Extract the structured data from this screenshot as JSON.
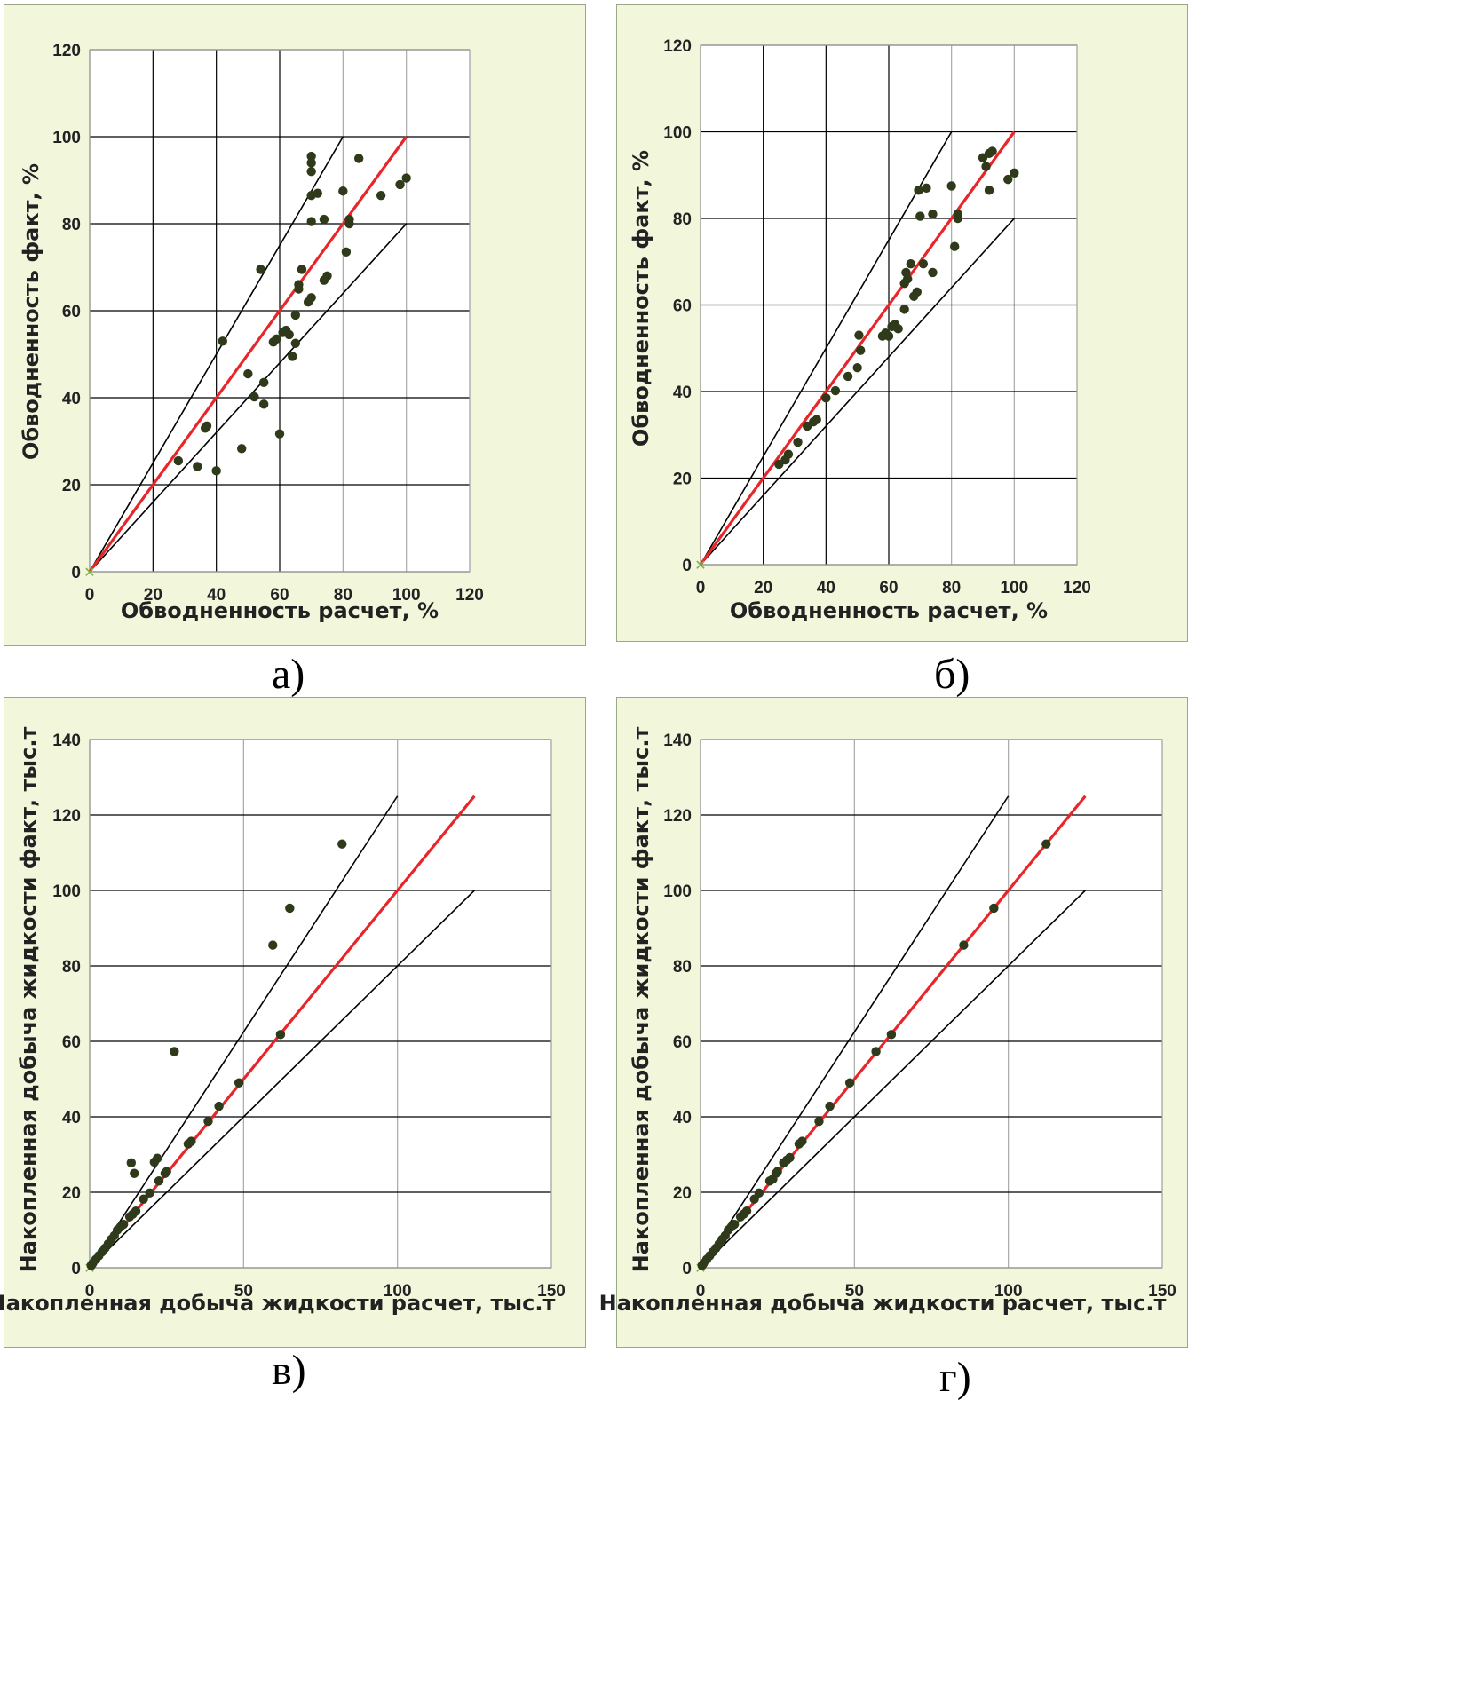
{
  "colors": {
    "panel_bg": "#f2f7dc",
    "plot_bg": "#ffffff",
    "grid_dark": "#000000",
    "grid_light": "#a8a8a8",
    "points": "#2f3a1a",
    "ideal_line": "#e8262a",
    "bound_lines": "#000000"
  },
  "chart_data": [
    {
      "type": "scatter",
      "caption": "а)",
      "xlabel": "Обводненность расчет, %",
      "ylabel": "Обводненность факт, %",
      "xlim": [
        0,
        120
      ],
      "ylim": [
        0,
        120
      ],
      "xticks": [
        0,
        20,
        40,
        60,
        80,
        100,
        120
      ],
      "yticks": [
        0,
        20,
        40,
        60,
        80,
        100,
        120
      ],
      "grid": true,
      "reference_lines": {
        "ideal": [
          [
            0,
            0
          ],
          [
            100,
            100
          ]
        ],
        "upper": [
          [
            0,
            0
          ],
          [
            80,
            100
          ]
        ],
        "lower": [
          [
            0,
            0
          ],
          [
            100,
            80
          ]
        ]
      },
      "points": [
        [
          28,
          25.5
        ],
        [
          34,
          24.2
        ],
        [
          36.5,
          33
        ],
        [
          37,
          33.5
        ],
        [
          40,
          23.2
        ],
        [
          42,
          53
        ],
        [
          48,
          28.3
        ],
        [
          50,
          45.5
        ],
        [
          52,
          40.2
        ],
        [
          54,
          69.5
        ],
        [
          55,
          43.5
        ],
        [
          55,
          38.5
        ],
        [
          58,
          52.8
        ],
        [
          59,
          53.5
        ],
        [
          60,
          31.7
        ],
        [
          61,
          55
        ],
        [
          62,
          55.5
        ],
        [
          63,
          54.5
        ],
        [
          64,
          49.5
        ],
        [
          65,
          52.5
        ],
        [
          65,
          59
        ],
        [
          66,
          65
        ],
        [
          66,
          66
        ],
        [
          67,
          69.5
        ],
        [
          69,
          62
        ],
        [
          70,
          63
        ],
        [
          70,
          80.5
        ],
        [
          70,
          86.5
        ],
        [
          70,
          92
        ],
        [
          70,
          94
        ],
        [
          70,
          95.5
        ],
        [
          72,
          87
        ],
        [
          74,
          81
        ],
        [
          74,
          67
        ],
        [
          75,
          68
        ],
        [
          80,
          87.5
        ],
        [
          81,
          73.5
        ],
        [
          82,
          80
        ],
        [
          82,
          81
        ],
        [
          85,
          95
        ],
        [
          92,
          86.5
        ],
        [
          98,
          89
        ],
        [
          100,
          90.5
        ]
      ]
    },
    {
      "type": "scatter",
      "caption": "б)",
      "xlabel": "Обводненность расчет, %",
      "ylabel": "Обводненность факт, %",
      "xlim": [
        0,
        120
      ],
      "ylim": [
        0,
        120
      ],
      "xticks": [
        0,
        20,
        40,
        60,
        80,
        100,
        120
      ],
      "yticks": [
        0,
        20,
        40,
        60,
        80,
        100,
        120
      ],
      "grid": true,
      "reference_lines": {
        "ideal": [
          [
            0,
            0
          ],
          [
            100,
            100
          ]
        ],
        "upper": [
          [
            0,
            0
          ],
          [
            80,
            100
          ]
        ],
        "lower": [
          [
            0,
            0
          ],
          [
            100,
            80
          ]
        ]
      },
      "points": [
        [
          25,
          23.2
        ],
        [
          27,
          24.2
        ],
        [
          28,
          25.5
        ],
        [
          31,
          28.3
        ],
        [
          34,
          32
        ],
        [
          36,
          33
        ],
        [
          37,
          33.5
        ],
        [
          40,
          38.5
        ],
        [
          43,
          40.2
        ],
        [
          47,
          43.5
        ],
        [
          50,
          45.5
        ],
        [
          50.5,
          53
        ],
        [
          51,
          49.5
        ],
        [
          58,
          52.8
        ],
        [
          59,
          53.5
        ],
        [
          60,
          52.8
        ],
        [
          61,
          55
        ],
        [
          62,
          55.5
        ],
        [
          63,
          54.5
        ],
        [
          65,
          59
        ],
        [
          65,
          65
        ],
        [
          65.5,
          67.5
        ],
        [
          66,
          66
        ],
        [
          67,
          69.5
        ],
        [
          68,
          62
        ],
        [
          69,
          63
        ],
        [
          69.5,
          86.5
        ],
        [
          70,
          80.5
        ],
        [
          71,
          69.5
        ],
        [
          72,
          87
        ],
        [
          74,
          81
        ],
        [
          74,
          67.5
        ],
        [
          80,
          87.5
        ],
        [
          81,
          73.5
        ],
        [
          82,
          80
        ],
        [
          82,
          81
        ],
        [
          90,
          94
        ],
        [
          91,
          92
        ],
        [
          92,
          95
        ],
        [
          92,
          86.5
        ],
        [
          93,
          95.5
        ],
        [
          98,
          89
        ],
        [
          100,
          90.5
        ]
      ]
    },
    {
      "type": "scatter",
      "caption": "в)",
      "xlabel": "Накопленная добыча жидкости расчет, тыс.т",
      "ylabel": "Накопленная добыча жидкости факт, тыс.т",
      "xlim": [
        0,
        150
      ],
      "ylim": [
        0,
        140
      ],
      "xticks": [
        0,
        50,
        100,
        150
      ],
      "yticks": [
        0,
        20,
        40,
        60,
        80,
        100,
        120,
        140
      ],
      "grid": true,
      "reference_lines": {
        "ideal": [
          [
            0,
            0
          ],
          [
            125,
            125
          ]
        ],
        "upper": [
          [
            0,
            0
          ],
          [
            100,
            125
          ]
        ],
        "lower": [
          [
            0,
            0
          ],
          [
            125,
            100
          ]
        ]
      },
      "points": [
        [
          0.5,
          0.6
        ],
        [
          1,
          1.2
        ],
        [
          2,
          2.2
        ],
        [
          3,
          3.2
        ],
        [
          4,
          4.2
        ],
        [
          5,
          5.2
        ],
        [
          6,
          6.3
        ],
        [
          7,
          7.5
        ],
        [
          8,
          8.5
        ],
        [
          9,
          10
        ],
        [
          10,
          10.8
        ],
        [
          11,
          11.5
        ],
        [
          13,
          13.5
        ],
        [
          14,
          14.2
        ],
        [
          15,
          15
        ],
        [
          13.5,
          27.8
        ],
        [
          14.5,
          25
        ],
        [
          17.5,
          18.2
        ],
        [
          19.5,
          19.8
        ],
        [
          21,
          28
        ],
        [
          22,
          29
        ],
        [
          22.5,
          23
        ],
        [
          24.5,
          25
        ],
        [
          25,
          25.5
        ],
        [
          27.5,
          57.3
        ],
        [
          32,
          32.8
        ],
        [
          33,
          33.5
        ],
        [
          38.5,
          38.8
        ],
        [
          42,
          42.8
        ],
        [
          48.5,
          49
        ],
        [
          59.5,
          85.5
        ],
        [
          62,
          61.8
        ],
        [
          65,
          95.3
        ],
        [
          82,
          112.3
        ]
      ]
    },
    {
      "type": "scatter",
      "caption": "г)",
      "xlabel": "Накопленная добыча жидкости расчет, тыс.т",
      "ylabel": "Накопленная добыча жидкости факт, тыс.т",
      "xlim": [
        0,
        150
      ],
      "ylim": [
        0,
        140
      ],
      "xticks": [
        0,
        50,
        100,
        150
      ],
      "yticks": [
        0,
        20,
        40,
        60,
        80,
        100,
        120,
        140
      ],
      "grid": true,
      "reference_lines": {
        "ideal": [
          [
            0,
            0
          ],
          [
            125,
            125
          ]
        ],
        "upper": [
          [
            0,
            0
          ],
          [
            100,
            125
          ]
        ],
        "lower": [
          [
            0,
            0
          ],
          [
            125,
            100
          ]
        ]
      },
      "points": [
        [
          0.5,
          0.6
        ],
        [
          1,
          1.2
        ],
        [
          2,
          2.2
        ],
        [
          3,
          3.2
        ],
        [
          4,
          4.2
        ],
        [
          5,
          5.2
        ],
        [
          6,
          6.3
        ],
        [
          7,
          7.5
        ],
        [
          8,
          8.5
        ],
        [
          9,
          10
        ],
        [
          10,
          10.8
        ],
        [
          11,
          11.5
        ],
        [
          13,
          13.5
        ],
        [
          14,
          14.2
        ],
        [
          15,
          15
        ],
        [
          17.5,
          18.2
        ],
        [
          19,
          19.8
        ],
        [
          22.5,
          23
        ],
        [
          23.5,
          23.5
        ],
        [
          24.5,
          25
        ],
        [
          25,
          25.5
        ],
        [
          27,
          27.8
        ],
        [
          28,
          28.5
        ],
        [
          29,
          29.2
        ],
        [
          32,
          32.8
        ],
        [
          33,
          33.5
        ],
        [
          38.5,
          38.8
        ],
        [
          42,
          42.8
        ],
        [
          48.5,
          49
        ],
        [
          57,
          57.3
        ],
        [
          62,
          61.8
        ],
        [
          85.5,
          85.5
        ],
        [
          95.3,
          95.3
        ],
        [
          112.3,
          112.3
        ]
      ]
    }
  ]
}
